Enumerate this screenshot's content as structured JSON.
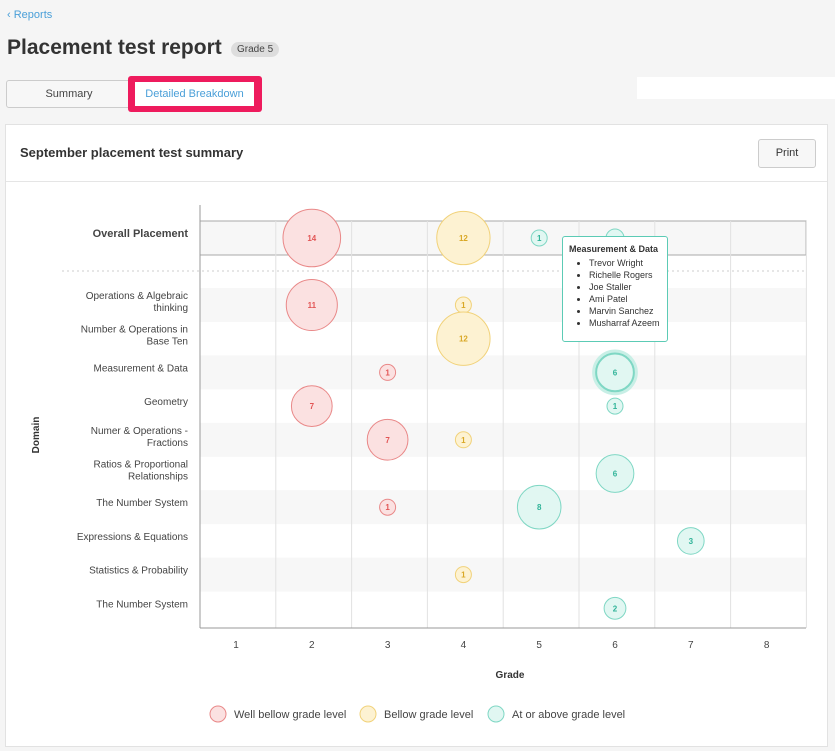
{
  "nav": {
    "back": "Reports"
  },
  "header": {
    "title": "Placement test report",
    "grade_badge": "Grade 5"
  },
  "tabs": [
    {
      "label": "Summary"
    },
    {
      "label": "Detailed Breakdown",
      "active": true
    }
  ],
  "card": {
    "title": "September placement test summary",
    "print": "Print"
  },
  "tooltip": {
    "title": "Measurement & Data",
    "names": [
      "Trevor Wright",
      "Richelle Rogers",
      "Joe Staller",
      "Ami Patel",
      "Marvin Sanchez",
      "Musharraf Azeem"
    ]
  },
  "colors": {
    "well_below": "#f06b6b",
    "below": "#f5cf5a",
    "at_above": "#3fc4aa"
  },
  "chart_data": {
    "type": "scatter",
    "xlabel": "Grade",
    "ylabel": "Domain",
    "x_ticks": [
      1,
      2,
      3,
      4,
      5,
      6,
      7,
      8
    ],
    "rows": [
      "Overall Placement",
      "Operations & Algebraic thinking",
      "Number & Operations in Base Ten",
      "Measurement & Data",
      "Geometry",
      "Numer & Operations - Fractions",
      "Ratios & Proportional Relationships",
      "The Number System",
      "Expressions & Equations",
      "Statistics & Probability",
      "The Number System"
    ],
    "legend": [
      {
        "key": "well_below",
        "label": "Well bellow grade level"
      },
      {
        "key": "below",
        "label": "Bellow grade level"
      },
      {
        "key": "at_above",
        "label": "At or above grade level"
      }
    ],
    "points": [
      {
        "row": 0,
        "grade": 2,
        "value": 14,
        "level": "well_below"
      },
      {
        "row": 0,
        "grade": 4,
        "value": 12,
        "level": "below"
      },
      {
        "row": 0,
        "grade": 5,
        "value": 1,
        "level": "at_above"
      },
      {
        "row": 0,
        "grade": 6,
        "value": null,
        "level": "at_above"
      },
      {
        "row": 1,
        "grade": 2,
        "value": 11,
        "level": "well_below"
      },
      {
        "row": 1,
        "grade": 4,
        "value": 1,
        "level": "below"
      },
      {
        "row": 2,
        "grade": 4,
        "value": 12,
        "level": "below"
      },
      {
        "row": 3,
        "grade": 3,
        "value": 1,
        "level": "well_below"
      },
      {
        "row": 3,
        "grade": 6,
        "value": 6,
        "level": "at_above",
        "highlighted": true
      },
      {
        "row": 4,
        "grade": 2,
        "value": 7,
        "level": "well_below"
      },
      {
        "row": 4,
        "grade": 6,
        "value": 1,
        "level": "at_above"
      },
      {
        "row": 5,
        "grade": 3,
        "value": 7,
        "level": "well_below"
      },
      {
        "row": 5,
        "grade": 4,
        "value": 1,
        "level": "below"
      },
      {
        "row": 6,
        "grade": 6,
        "value": 6,
        "level": "at_above"
      },
      {
        "row": 7,
        "grade": 3,
        "value": 1,
        "level": "well_below"
      },
      {
        "row": 7,
        "grade": 5,
        "value": 8,
        "level": "at_above"
      },
      {
        "row": 8,
        "grade": 7,
        "value": 3,
        "level": "at_above"
      },
      {
        "row": 9,
        "grade": 4,
        "value": 1,
        "level": "below"
      },
      {
        "row": 10,
        "grade": 6,
        "value": 2,
        "level": "at_above"
      }
    ]
  }
}
